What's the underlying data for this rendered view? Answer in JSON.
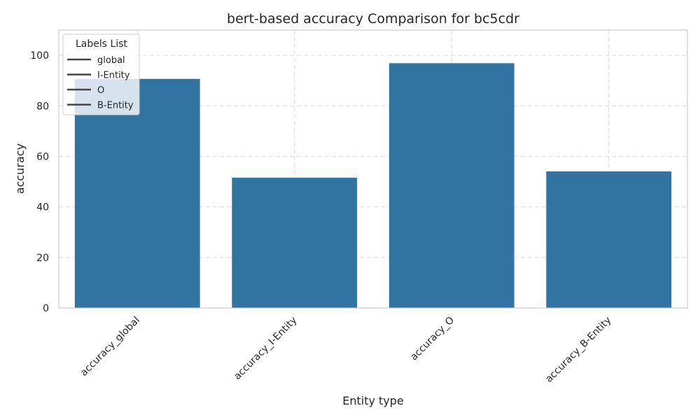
{
  "chart_data": {
    "type": "bar",
    "title": "bert-based  accuracy Comparison for bc5cdr",
    "xlabel": "Entity type",
    "ylabel": "accuracy",
    "categories": [
      "accuracy_global",
      "accuracy_I-Entity",
      "accuracy_O",
      "accuracy_B-Entity"
    ],
    "values": [
      90.8,
      51.7,
      97.0,
      54.2
    ],
    "ylim": [
      0,
      110
    ],
    "yticks": [
      0,
      20,
      40,
      60,
      80,
      100
    ],
    "bar_color": "#3274a1",
    "grid": true,
    "legend": {
      "title": "Labels List",
      "position": "top-left",
      "entries": [
        "global",
        "I-Entity",
        "O",
        "B-Entity"
      ]
    }
  }
}
